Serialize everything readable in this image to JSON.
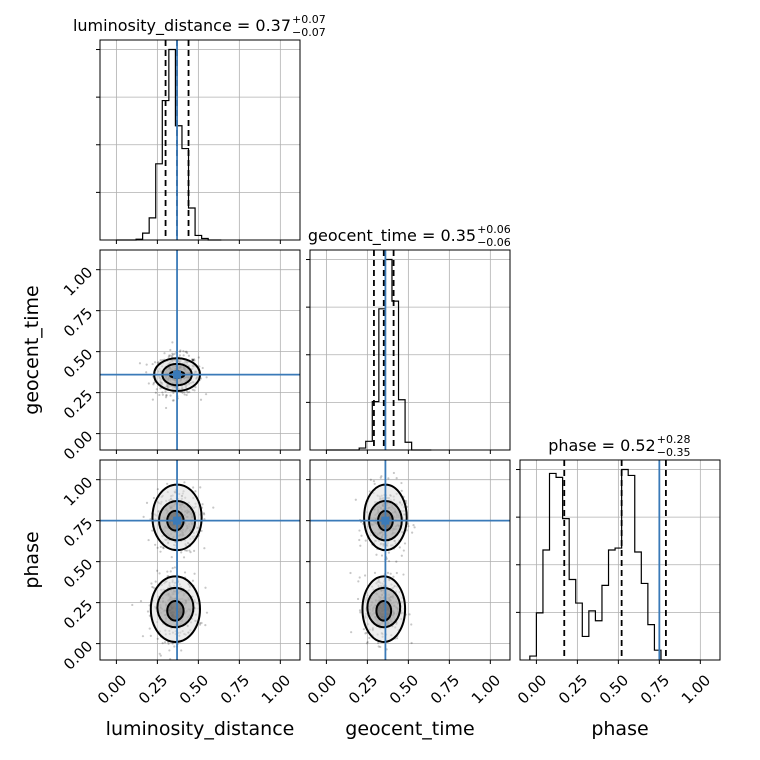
{
  "chart_data": {
    "type": "corner",
    "parameters": [
      "luminosity_distance",
      "geocent_time",
      "phase"
    ],
    "axis_range": [
      -0.1,
      1.12
    ],
    "ticks": [
      0.0,
      0.25,
      0.5,
      0.75,
      1.0
    ],
    "tick_labels": [
      "0.00",
      "0.25",
      "0.50",
      "0.75",
      "1.00"
    ],
    "grid": true,
    "truths": {
      "luminosity_distance": 0.37,
      "geocent_time": 0.36,
      "phase": 0.75
    },
    "titles": [
      {
        "name": "luminosity_distance",
        "median": "0.37",
        "plus": "+0.07",
        "minus": "−0.07"
      },
      {
        "name": "geocent_time",
        "median": "0.35",
        "plus": "+0.06",
        "minus": "−0.06"
      },
      {
        "name": "phase",
        "median": "0.52",
        "plus": "+0.28",
        "minus": "−0.35"
      }
    ],
    "quantiles": {
      "luminosity_distance": [
        0.3,
        0.37,
        0.44
      ],
      "geocent_time": [
        0.29,
        0.35,
        0.41
      ],
      "phase": [
        0.17,
        0.52,
        0.79
      ]
    },
    "histograms": {
      "luminosity_distance": {
        "edges": [
          0.0,
          0.04,
          0.08,
          0.12,
          0.16,
          0.2,
          0.24,
          0.28,
          0.32,
          0.36,
          0.4,
          0.44,
          0.48,
          0.52,
          0.56,
          0.6,
          0.64
        ],
        "counts": [
          0,
          0,
          0,
          1,
          9,
          29,
          100,
          183,
          250,
          150,
          120,
          42,
          6,
          2,
          0,
          0
        ]
      },
      "geocent_time": {
        "edges": [
          0.0,
          0.04,
          0.08,
          0.12,
          0.16,
          0.2,
          0.24,
          0.28,
          0.32,
          0.36,
          0.4,
          0.44,
          0.48,
          0.52,
          0.56,
          0.6,
          0.64
        ],
        "counts": [
          0,
          0,
          0,
          0,
          0,
          2,
          9,
          50,
          146,
          197,
          154,
          52,
          8,
          0,
          0,
          0
        ]
      },
      "phase": {
        "edges": [
          -0.04,
          0.0,
          0.04,
          0.08,
          0.12,
          0.16,
          0.2,
          0.24,
          0.28,
          0.32,
          0.36,
          0.4,
          0.44,
          0.48,
          0.52,
          0.56,
          0.6,
          0.64,
          0.68,
          0.72,
          0.76,
          0.8,
          0.84,
          0.88,
          0.92,
          0.96,
          1.0
        ],
        "counts": [
          2,
          24,
          56,
          95,
          93,
          72,
          41,
          29,
          12,
          25,
          20,
          38,
          56,
          57,
          97,
          94,
          55,
          39,
          18,
          5,
          0,
          0,
          0,
          0,
          0,
          0
        ]
      }
    },
    "samples_2d": {
      "luminosity_distance_vs_geocent_time": {
        "clusters": [
          {
            "x": 0.37,
            "y": 0.36,
            "sx": 0.065,
            "sy": 0.06,
            "n": 520
          }
        ]
      },
      "luminosity_distance_vs_phase": {
        "clusters": [
          {
            "x": 0.37,
            "y": 0.75,
            "sx": 0.07,
            "sy": 0.1,
            "n": 330
          },
          {
            "x": 0.36,
            "y": 0.22,
            "sx": 0.07,
            "sy": 0.1,
            "n": 330
          }
        ]
      },
      "geocent_time_vs_phase": {
        "clusters": [
          {
            "x": 0.36,
            "y": 0.75,
            "sx": 0.06,
            "sy": 0.1,
            "n": 330
          },
          {
            "x": 0.35,
            "y": 0.22,
            "sx": 0.06,
            "sy": 0.1,
            "n": 330
          }
        ]
      }
    },
    "contours": {
      "luminosity_distance_vs_geocent_time": [
        [
          {
            "x": 0.37,
            "y": 0.36,
            "rx": 0.045,
            "ry": 0.02
          }
        ],
        [
          {
            "x": 0.37,
            "y": 0.36,
            "rx": 0.09,
            "ry": 0.065
          }
        ],
        [
          {
            "x": 0.37,
            "y": 0.36,
            "rx": 0.14,
            "ry": 0.1
          }
        ]
      ],
      "luminosity_distance_vs_phase": [
        [
          {
            "x": 0.36,
            "y": 0.75,
            "rx": 0.05,
            "ry": 0.06
          },
          {
            "x": 0.36,
            "y": 0.2,
            "rx": 0.05,
            "ry": 0.06
          }
        ],
        [
          {
            "x": 0.37,
            "y": 0.75,
            "rx": 0.11,
            "ry": 0.12
          },
          {
            "x": 0.36,
            "y": 0.22,
            "rx": 0.11,
            "ry": 0.12
          }
        ],
        [
          {
            "x": 0.37,
            "y": 0.77,
            "rx": 0.15,
            "ry": 0.2
          },
          {
            "x": 0.36,
            "y": 0.21,
            "rx": 0.15,
            "ry": 0.2
          }
        ]
      ],
      "geocent_time_vs_phase": [
        [
          {
            "x": 0.36,
            "y": 0.75,
            "rx": 0.045,
            "ry": 0.06
          },
          {
            "x": 0.35,
            "y": 0.2,
            "rx": 0.045,
            "ry": 0.06
          }
        ],
        [
          {
            "x": 0.36,
            "y": 0.75,
            "rx": 0.1,
            "ry": 0.12
          },
          {
            "x": 0.35,
            "y": 0.22,
            "rx": 0.1,
            "ry": 0.12
          }
        ],
        [
          {
            "x": 0.36,
            "y": 0.77,
            "rx": 0.13,
            "ry": 0.2
          },
          {
            "x": 0.35,
            "y": 0.21,
            "rx": 0.13,
            "ry": 0.2
          }
        ]
      ]
    },
    "colors": {
      "truth": "#3a7ab8",
      "line": "#000000",
      "grid": "#b0b0b0"
    }
  }
}
